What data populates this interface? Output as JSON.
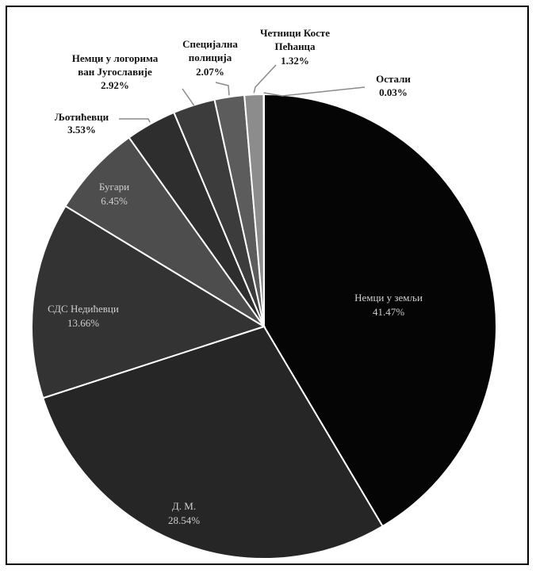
{
  "chart_data": {
    "type": "pie",
    "title": "",
    "slices": [
      {
        "label": "Немци у земљи",
        "value": 41.47,
        "value_label": "41.47%",
        "color": "#050505"
      },
      {
        "label": "Д. М.",
        "value": 28.54,
        "value_label": "28.54%",
        "color": "#262626"
      },
      {
        "label": "СДС Недићевци",
        "value": 13.66,
        "value_label": "13.66%",
        "color": "#333333"
      },
      {
        "label": "Бугари",
        "value": 6.45,
        "value_label": "6.45%",
        "color": "#4d4d4d"
      },
      {
        "label": "Љотићевци",
        "value": 3.53,
        "value_label": "3.53%",
        "color": "#2e2e2e"
      },
      {
        "label": "Немци у логорима ван Југославије",
        "label_lines": [
          "Немци у логорима",
          "ван Југославије"
        ],
        "value": 2.92,
        "value_label": "2.92%",
        "color": "#3c3c3c"
      },
      {
        "label": "Специјална полиција",
        "label_lines": [
          "Специјална",
          "полиција"
        ],
        "value": 2.07,
        "value_label": "2.07%",
        "color": "#5c5c5c"
      },
      {
        "label": "Четници Косте Пећанца",
        "label_lines": [
          "Четници Косте",
          "Пећанца"
        ],
        "value": 1.32,
        "value_label": "1.32%",
        "color": "#8c8c8c"
      },
      {
        "label": "Остали",
        "value": 0.03,
        "value_label": "0.03%",
        "color": "#bdbdbd"
      }
    ]
  }
}
